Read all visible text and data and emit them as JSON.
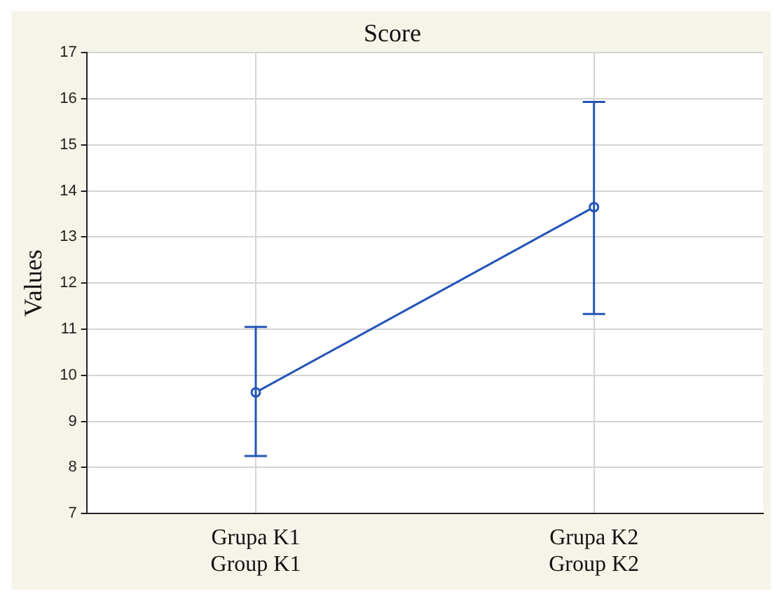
{
  "chart_data": {
    "type": "line",
    "title": "Score",
    "ylabel": "Values",
    "categories": [
      "Grupa K1\nGroup K1",
      "Grupa K2\nGroup K2"
    ],
    "series": [
      {
        "color": "#2455b8",
        "values": [
          9.63,
          13.65
        ],
        "errors": [
          [
            8.25,
            11.05
          ],
          [
            11.33,
            15.93
          ]
        ]
      }
    ],
    "ylim": [
      7,
      17
    ],
    "yticks": [
      7,
      8,
      9,
      10,
      11,
      12,
      13,
      14,
      15,
      16,
      17
    ],
    "grid": true,
    "legend": false,
    "marker": "circle",
    "line_style": "solid"
  }
}
